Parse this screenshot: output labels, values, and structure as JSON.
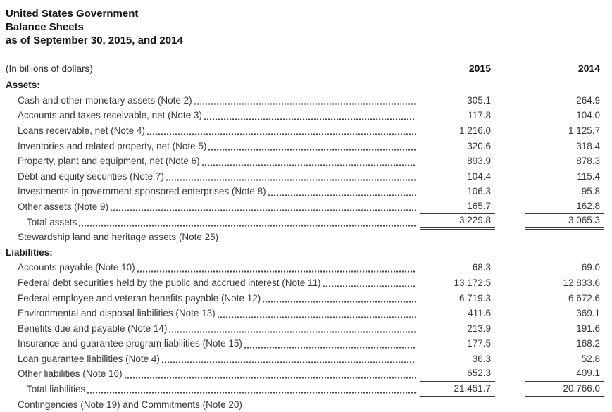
{
  "title": {
    "line1": "United States Government",
    "line2": "Balance Sheets",
    "line3": "as of September 30, 2015, and 2014"
  },
  "columns": {
    "unit_label": "(In billions of dollars)",
    "year1": "2015",
    "year2": "2014"
  },
  "assets": {
    "heading": "Assets:",
    "rows": [
      {
        "label": "Cash and other monetary assets (Note 2)",
        "y2015": "305.1",
        "y2014": "264.9"
      },
      {
        "label": "Accounts and taxes receivable, net (Note 3)",
        "y2015": "117.8",
        "y2014": "104.0"
      },
      {
        "label": "Loans receivable, net (Note 4)",
        "y2015": "1,216.0",
        "y2014": "1,125.7"
      },
      {
        "label": "Inventories and related property, net (Note 5)",
        "y2015": "320.6",
        "y2014": "318.4"
      },
      {
        "label": "Property, plant and equipment, net (Note 6)",
        "y2015": "893.9",
        "y2014": "878.3"
      },
      {
        "label": "Debt and equity securities (Note 7)",
        "y2015": "104.4",
        "y2014": "115.4"
      },
      {
        "label": "Investments in government-sponsored enterprises (Note 8)",
        "y2015": "106.3",
        "y2014": "95.8"
      },
      {
        "label": "Other assets (Note 9)",
        "y2015": "165.7",
        "y2014": "162.8"
      },
      {
        "label": "Total assets",
        "y2015": "3,229.8",
        "y2014": "3,065.3"
      },
      {
        "label": "Stewardship land and heritage assets (Note 25)"
      }
    ]
  },
  "liabilities": {
    "heading": "Liabilities:",
    "rows": [
      {
        "label": "Accounts payable (Note 10)",
        "y2015": "68.3",
        "y2014": "69.0"
      },
      {
        "label": "Federal debt securities held by the public and accrued interest (Note 11)",
        "y2015": "13,172.5",
        "y2014": "12,833.6"
      },
      {
        "label": "Federal employee and veteran benefits payable (Note 12)",
        "y2015": "6,719.3",
        "y2014": "6,672.6"
      },
      {
        "label": "Environmental and disposal liabilities (Note 13)",
        "y2015": "411.6",
        "y2014": "369.1"
      },
      {
        "label": "Benefits due and payable (Note 14)",
        "y2015": "213.9",
        "y2014": "191.6"
      },
      {
        "label": "Insurance and guarantee program liabilities (Note 15)",
        "y2015": "177.5",
        "y2014": "168.2"
      },
      {
        "label": "Loan guarantee liabilities (Note 4)",
        "y2015": "36.3",
        "y2014": "52.8"
      },
      {
        "label": "Other liabilities (Note 16)",
        "y2015": "652.3",
        "y2014": "409.1"
      },
      {
        "label": "Total liabilities",
        "y2015": "21,451.7",
        "y2014": "20,766.0"
      },
      {
        "label": "Contingencies (Note 19) and Commitments (Note 20)"
      }
    ]
  }
}
